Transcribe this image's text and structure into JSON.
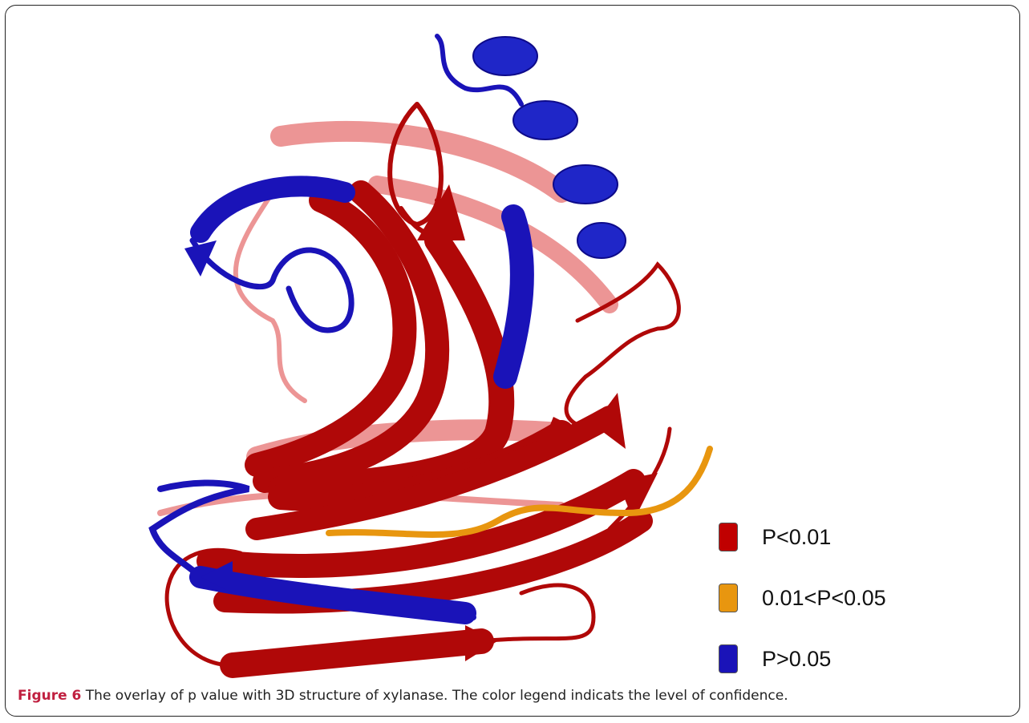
{
  "figure": {
    "label": "Figure 6",
    "caption": "The overlay of p value with 3D structure of xylanase. The color legend indicats the level of confidence."
  },
  "legend": [
    {
      "label": "P<0.01",
      "color": "#c00000"
    },
    {
      "label": "0.01<P<0.05",
      "color": "#e8960f"
    },
    {
      "label": "P>0.05",
      "color": "#1a13b8"
    }
  ]
}
